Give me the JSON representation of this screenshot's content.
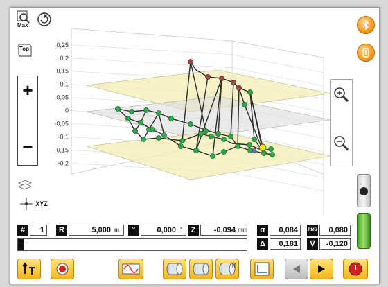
{
  "toolbar": {
    "max_label": "Max",
    "top_label": "Top",
    "zoom_in_label": "+",
    "zoom_out_label": "−",
    "axes_label": "XYZ"
  },
  "chart_data": {
    "type": "line",
    "y_ticks": [
      "0,25",
      "0,2",
      "0,15",
      "0,1",
      "0,05",
      "0",
      "-0,05",
      "-0,1",
      "-0,15",
      "-0,2"
    ],
    "ylim": [
      -0.22,
      0.26
    ]
  },
  "fields": {
    "index_label": "#",
    "index_value": "1",
    "r_label": "R",
    "r_value": "5,000",
    "r_unit": "m",
    "angle_label": "°",
    "angle_value": "0,000",
    "angle_unit": "°",
    "z_label": "Z",
    "z_value": "-0,094",
    "z_unit": "mm",
    "sigma_label": "σ",
    "sigma_value": "0,084",
    "rms_label": "RMS",
    "rms_value": "0,080",
    "delta_label": "Δ",
    "delta_value": "0,181",
    "nabla_label": "∇",
    "nabla_value": "-0,120"
  },
  "colors": {
    "accent": "#f4b51b",
    "plane": "#f3edb6",
    "node_green": "#2fa84a",
    "node_red": "#a04a4a",
    "node_yellow": "#f2e600"
  }
}
